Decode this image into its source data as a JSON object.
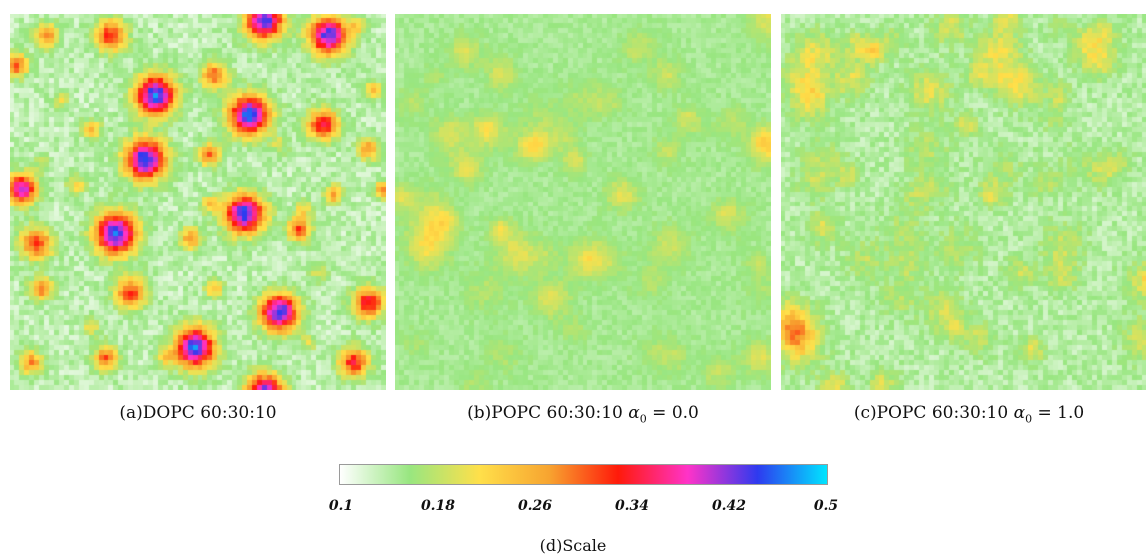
{
  "panels": [
    {
      "id": "a",
      "caption_label": "(a)DOPC 60:30:10",
      "caption_math": ""
    },
    {
      "id": "b",
      "caption_label": "(b)POPC 60:30:10 ",
      "caption_math": "α",
      "caption_sub": "0",
      "caption_rest": " = 0.0"
    },
    {
      "id": "c",
      "caption_label": "(c)POPC 60:30:10 ",
      "caption_math": "α",
      "caption_sub": "0",
      "caption_rest": " = 1.0"
    }
  ],
  "scale": {
    "caption": "(d)Scale",
    "ticks": [
      "0.1",
      "0.18",
      "0.26",
      "0.34",
      "0.42",
      "0.5"
    ],
    "min": 0.1,
    "max": 0.5,
    "colors": [
      "#ffffff",
      "#98e680",
      "#ffe04a",
      "#f7a430",
      "#ff1a0a",
      "#ff33c8",
      "#2e3aef",
      "#00e5ff"
    ]
  },
  "chart_data": {
    "type": "heatmap",
    "grid": "76x76 cells",
    "value_range": [
      0.1,
      0.5
    ],
    "panels": [
      {
        "name": "(a)DOPC 60:30:10",
        "background_level": 0.13,
        "domain_peak_level": 0.45,
        "domain_count": 43
      },
      {
        "name": "(b)POPC 60:30:10 α0 = 0.0",
        "background_level": 0.15,
        "domain_peak_level": 0.21
      },
      {
        "name": "(c)POPC 60:30:10 α0 = 1.0",
        "background_level": 0.14,
        "domain_peak_level": 0.22
      }
    ]
  }
}
